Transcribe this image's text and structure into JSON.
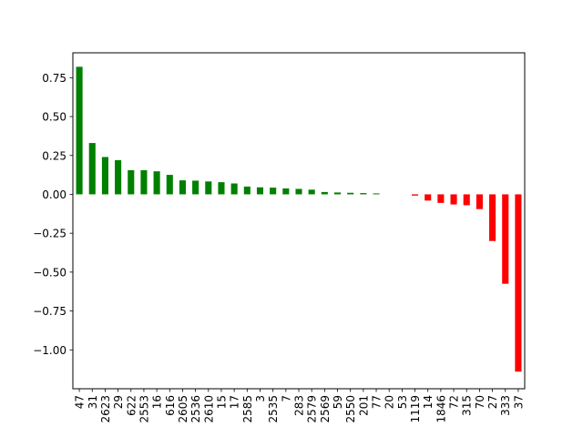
{
  "chart_data": {
    "type": "bar",
    "orientation": "vertical",
    "categories": [
      "47",
      "31",
      "2623",
      "29",
      "622",
      "2553",
      "16",
      "616",
      "2605",
      "2536",
      "2610",
      "15",
      "17",
      "2585",
      "3",
      "2535",
      "7",
      "283",
      "2579",
      "2569",
      "59",
      "2550",
      "201",
      "77",
      "20",
      "53",
      "1119",
      "14",
      "1846",
      "72",
      "315",
      "70",
      "27",
      "333",
      "37"
    ],
    "values": [
      0.82,
      0.33,
      0.24,
      0.22,
      0.155,
      0.155,
      0.148,
      0.125,
      0.09,
      0.088,
      0.083,
      0.078,
      0.07,
      0.05,
      0.045,
      0.043,
      0.038,
      0.035,
      0.03,
      0.015,
      0.012,
      0.01,
      0.008,
      0.006,
      0.0,
      0.0,
      -0.008,
      -0.04,
      -0.055,
      -0.065,
      -0.07,
      -0.095,
      -0.3,
      -0.575,
      -1.14
    ],
    "positive_color": "#008000",
    "negative_color": "#ff0000",
    "ylim": [
      -1.25,
      0.91
    ],
    "yticks": [
      "0.75",
      "0.50",
      "0.25",
      "0.00",
      "−0.25",
      "−0.50",
      "−0.75",
      "−1.00"
    ],
    "ytick_values": [
      0.75,
      0.5,
      0.25,
      0.0,
      -0.25,
      -0.5,
      -0.75,
      -1.0
    ],
    "grid": false,
    "title": "",
    "xlabel": "",
    "ylabel": ""
  }
}
